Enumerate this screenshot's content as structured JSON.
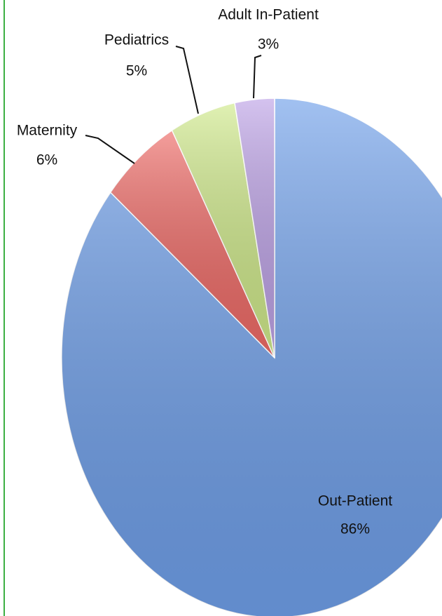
{
  "chart_data": {
    "type": "pie",
    "categories": [
      "Out-Patient",
      "Maternity",
      "Pediatrics",
      "Adult In-Patient"
    ],
    "values": [
      86,
      6,
      5,
      3
    ],
    "value_labels": [
      "86%",
      "6%",
      "5%",
      "3%"
    ],
    "colors": [
      "#6f9fe9",
      "#ee6a66",
      "#cfe98a",
      "#bda2e6"
    ]
  }
}
